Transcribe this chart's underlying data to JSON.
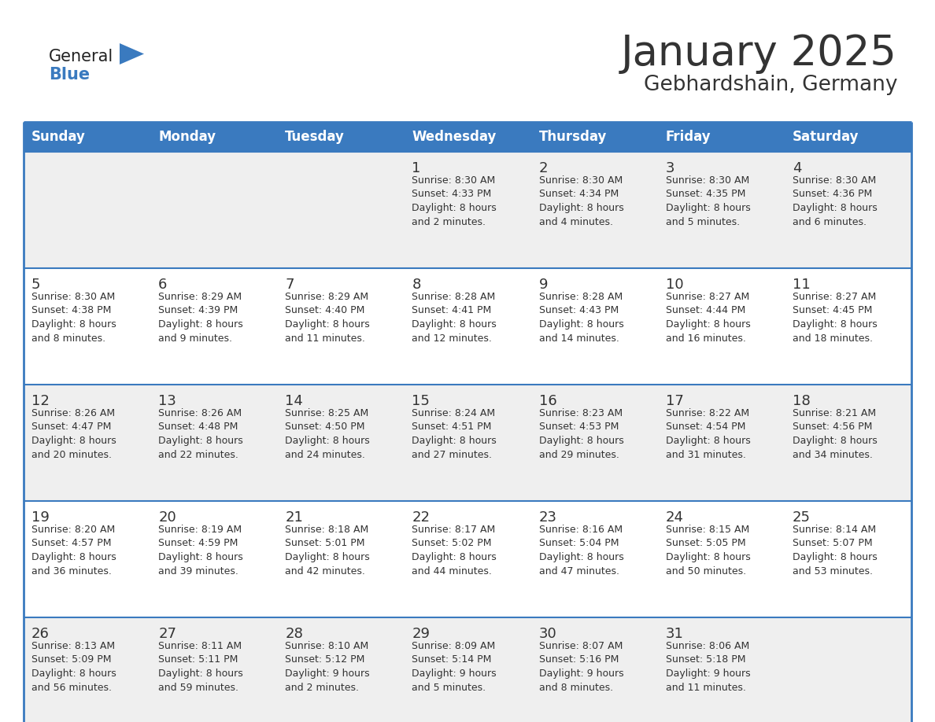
{
  "title": "January 2025",
  "subtitle": "Gebhardshain, Germany",
  "header_bg": "#3a7abf",
  "header_text_color": "#ffffff",
  "cell_bg_light": "#efefef",
  "cell_bg_white": "#ffffff",
  "border_color": "#3a7abf",
  "text_color": "#333333",
  "days_of_week": [
    "Sunday",
    "Monday",
    "Tuesday",
    "Wednesday",
    "Thursday",
    "Friday",
    "Saturday"
  ],
  "calendar": [
    [
      {
        "day": "",
        "info": ""
      },
      {
        "day": "",
        "info": ""
      },
      {
        "day": "",
        "info": ""
      },
      {
        "day": "1",
        "info": "Sunrise: 8:30 AM\nSunset: 4:33 PM\nDaylight: 8 hours\nand 2 minutes."
      },
      {
        "day": "2",
        "info": "Sunrise: 8:30 AM\nSunset: 4:34 PM\nDaylight: 8 hours\nand 4 minutes."
      },
      {
        "day": "3",
        "info": "Sunrise: 8:30 AM\nSunset: 4:35 PM\nDaylight: 8 hours\nand 5 minutes."
      },
      {
        "day": "4",
        "info": "Sunrise: 8:30 AM\nSunset: 4:36 PM\nDaylight: 8 hours\nand 6 minutes."
      }
    ],
    [
      {
        "day": "5",
        "info": "Sunrise: 8:30 AM\nSunset: 4:38 PM\nDaylight: 8 hours\nand 8 minutes."
      },
      {
        "day": "6",
        "info": "Sunrise: 8:29 AM\nSunset: 4:39 PM\nDaylight: 8 hours\nand 9 minutes."
      },
      {
        "day": "7",
        "info": "Sunrise: 8:29 AM\nSunset: 4:40 PM\nDaylight: 8 hours\nand 11 minutes."
      },
      {
        "day": "8",
        "info": "Sunrise: 8:28 AM\nSunset: 4:41 PM\nDaylight: 8 hours\nand 12 minutes."
      },
      {
        "day": "9",
        "info": "Sunrise: 8:28 AM\nSunset: 4:43 PM\nDaylight: 8 hours\nand 14 minutes."
      },
      {
        "day": "10",
        "info": "Sunrise: 8:27 AM\nSunset: 4:44 PM\nDaylight: 8 hours\nand 16 minutes."
      },
      {
        "day": "11",
        "info": "Sunrise: 8:27 AM\nSunset: 4:45 PM\nDaylight: 8 hours\nand 18 minutes."
      }
    ],
    [
      {
        "day": "12",
        "info": "Sunrise: 8:26 AM\nSunset: 4:47 PM\nDaylight: 8 hours\nand 20 minutes."
      },
      {
        "day": "13",
        "info": "Sunrise: 8:26 AM\nSunset: 4:48 PM\nDaylight: 8 hours\nand 22 minutes."
      },
      {
        "day": "14",
        "info": "Sunrise: 8:25 AM\nSunset: 4:50 PM\nDaylight: 8 hours\nand 24 minutes."
      },
      {
        "day": "15",
        "info": "Sunrise: 8:24 AM\nSunset: 4:51 PM\nDaylight: 8 hours\nand 27 minutes."
      },
      {
        "day": "16",
        "info": "Sunrise: 8:23 AM\nSunset: 4:53 PM\nDaylight: 8 hours\nand 29 minutes."
      },
      {
        "day": "17",
        "info": "Sunrise: 8:22 AM\nSunset: 4:54 PM\nDaylight: 8 hours\nand 31 minutes."
      },
      {
        "day": "18",
        "info": "Sunrise: 8:21 AM\nSunset: 4:56 PM\nDaylight: 8 hours\nand 34 minutes."
      }
    ],
    [
      {
        "day": "19",
        "info": "Sunrise: 8:20 AM\nSunset: 4:57 PM\nDaylight: 8 hours\nand 36 minutes."
      },
      {
        "day": "20",
        "info": "Sunrise: 8:19 AM\nSunset: 4:59 PM\nDaylight: 8 hours\nand 39 minutes."
      },
      {
        "day": "21",
        "info": "Sunrise: 8:18 AM\nSunset: 5:01 PM\nDaylight: 8 hours\nand 42 minutes."
      },
      {
        "day": "22",
        "info": "Sunrise: 8:17 AM\nSunset: 5:02 PM\nDaylight: 8 hours\nand 44 minutes."
      },
      {
        "day": "23",
        "info": "Sunrise: 8:16 AM\nSunset: 5:04 PM\nDaylight: 8 hours\nand 47 minutes."
      },
      {
        "day": "24",
        "info": "Sunrise: 8:15 AM\nSunset: 5:05 PM\nDaylight: 8 hours\nand 50 minutes."
      },
      {
        "day": "25",
        "info": "Sunrise: 8:14 AM\nSunset: 5:07 PM\nDaylight: 8 hours\nand 53 minutes."
      }
    ],
    [
      {
        "day": "26",
        "info": "Sunrise: 8:13 AM\nSunset: 5:09 PM\nDaylight: 8 hours\nand 56 minutes."
      },
      {
        "day": "27",
        "info": "Sunrise: 8:11 AM\nSunset: 5:11 PM\nDaylight: 8 hours\nand 59 minutes."
      },
      {
        "day": "28",
        "info": "Sunrise: 8:10 AM\nSunset: 5:12 PM\nDaylight: 9 hours\nand 2 minutes."
      },
      {
        "day": "29",
        "info": "Sunrise: 8:09 AM\nSunset: 5:14 PM\nDaylight: 9 hours\nand 5 minutes."
      },
      {
        "day": "30",
        "info": "Sunrise: 8:07 AM\nSunset: 5:16 PM\nDaylight: 9 hours\nand 8 minutes."
      },
      {
        "day": "31",
        "info": "Sunrise: 8:06 AM\nSunset: 5:18 PM\nDaylight: 9 hours\nand 11 minutes."
      },
      {
        "day": "",
        "info": ""
      }
    ]
  ],
  "logo_general_color": "#222222",
  "logo_blue_color": "#3a7abf",
  "title_fontsize": 38,
  "subtitle_fontsize": 19,
  "header_fontsize": 12,
  "day_num_fontsize": 13,
  "info_fontsize": 9
}
